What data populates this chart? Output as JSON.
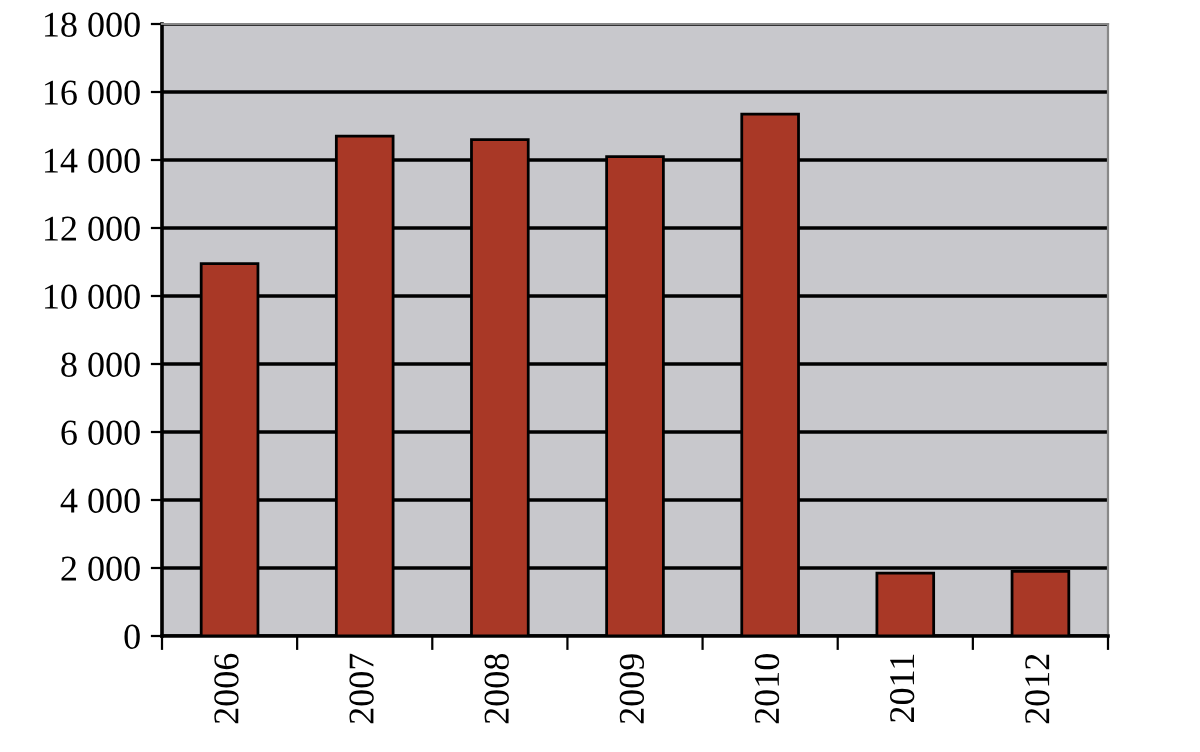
{
  "chart_data": {
    "type": "bar",
    "categories": [
      "2006",
      "2007",
      "2008",
      "2009",
      "2010",
      "2011",
      "2012"
    ],
    "values": [
      10950,
      14700,
      14600,
      14100,
      15350,
      1850,
      1900
    ],
    "color": "#a93826",
    "ylim": [
      0,
      18000
    ],
    "yticks": [
      0,
      {
        "value": 2000,
        "label": "2 000"
      },
      {
        "value": 4000,
        "label": "4 000"
      },
      {
        "value": 6000,
        "label": "6 000"
      },
      {
        "value": 8000,
        "label": "8 000"
      },
      {
        "value": 10000,
        "label": "10 000"
      },
      {
        "value": 12000,
        "label": "12 000"
      },
      {
        "value": 14000,
        "label": "14 000"
      },
      {
        "value": 16000,
        "label": "16 000"
      },
      {
        "value": 18000,
        "label": "18 000"
      }
    ],
    "grid": "y"
  }
}
